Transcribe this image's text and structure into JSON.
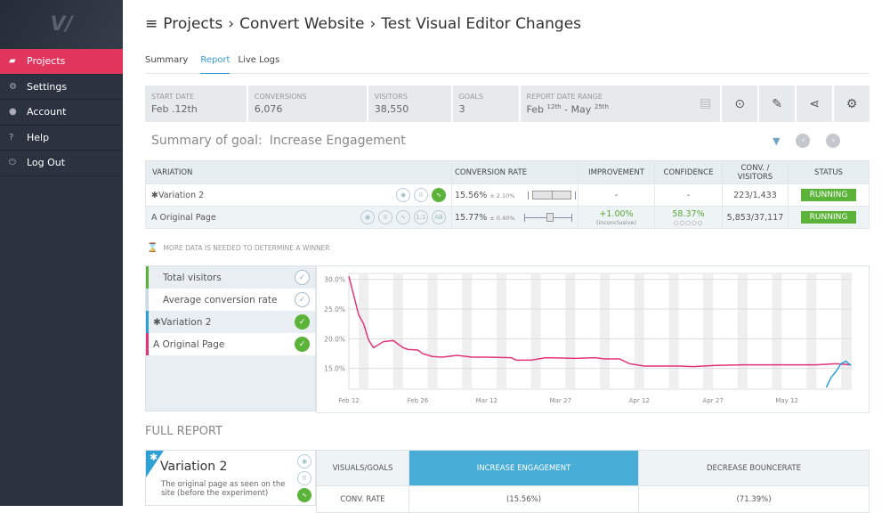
{
  "sidebar": {
    "logo": "V/",
    "items": [
      {
        "label": "Projects",
        "icon": "folder-icon",
        "active": true
      },
      {
        "label": "Settings",
        "icon": "gears-icon"
      },
      {
        "label": "Account",
        "icon": "user-icon"
      },
      {
        "label": "Help",
        "icon": "help-icon"
      },
      {
        "label": "Log Out",
        "icon": "power-icon"
      }
    ]
  },
  "breadcrumb": [
    "Projects",
    "Convert Website",
    "Test Visual Editor Changes"
  ],
  "tabs": [
    {
      "label": "Summary"
    },
    {
      "label": "Report",
      "active": true
    },
    {
      "label": "Live Logs"
    }
  ],
  "stats": [
    {
      "label": "START DATE",
      "value": "Feb .12th"
    },
    {
      "label": "CONVERSIONS",
      "value": "6,076"
    },
    {
      "label": "VISITORS",
      "value": "38,550"
    },
    {
      "label": "GOALS",
      "value": "3"
    }
  ],
  "date_range": {
    "label": "REPORT DATE RANGE",
    "from": "Feb",
    "from_sup": "12th",
    "sep": " - ",
    "to": "May",
    "to_sup": "25th"
  },
  "goal": {
    "prefix": "Summary of goal:",
    "name": "Increase Engagement"
  },
  "variation_table": {
    "headers": [
      "VARIATION",
      "CONVERSION RATE",
      "IMPROVEMENT",
      "CONFIDENCE",
      "CONV. / VISITORS",
      "STATUS"
    ],
    "rows": [
      {
        "marker": "✱",
        "name": "Variation 2",
        "rate": "15.56%",
        "margin": "± 2.10%",
        "improvement": "-",
        "improvement_note": "",
        "confidence": "-",
        "confidence_dots": "",
        "conv_visitors": "223/1,433",
        "status": "RUNNING"
      },
      {
        "marker": "A",
        "name": "Original Page",
        "rate": "15.77%",
        "margin": "± 0.40%",
        "improvement": "+1.00%",
        "improvement_note": "(inconclusive)",
        "confidence": "58.37%",
        "confidence_dots": "○○○○○",
        "conv_visitors": "5,853/37,117",
        "status": "RUNNING"
      }
    ]
  },
  "notice": "MORE DATA IS NEEDED TO DETERMINE A WINNER",
  "legend": [
    {
      "label": "Total visitors",
      "checked": false,
      "color": "#5cb33a"
    },
    {
      "label": "Average conversion rate",
      "checked": false,
      "color": "#c9dbe3"
    },
    {
      "label": "✱Variation 2",
      "checked": true,
      "color": "#2ea1d4"
    },
    {
      "label": "A Original Page",
      "checked": true,
      "color": "#e0357a"
    }
  ],
  "chart_data": {
    "type": "line",
    "ylim": [
      11.5,
      31
    ],
    "yticks": [
      "15.0%",
      "20.0%",
      "25.0%",
      "30.0%"
    ],
    "ytick_values": [
      15,
      20,
      25,
      30
    ],
    "xticks": [
      "Feb 12",
      "Feb 26",
      "Mar 12",
      "Mar 27",
      "Apr 12",
      "Apr 27",
      "May 12"
    ],
    "xtick_dates": [
      "2015-02-12",
      "2015-02-26",
      "2015-03-12",
      "2015-03-27",
      "2015-04-12",
      "2015-04-27",
      "2015-05-12"
    ],
    "xlim": [
      "2015-02-12",
      "2015-05-25"
    ],
    "grid": true,
    "series": [
      {
        "name": "Original Page",
        "color": "#e0357a",
        "points": [
          [
            "2015-02-12",
            30.5
          ],
          [
            "2015-02-14",
            24
          ],
          [
            "2015-02-15",
            22.5
          ],
          [
            "2015-02-16",
            19.8
          ],
          [
            "2015-02-17",
            18.5
          ],
          [
            "2015-02-19",
            19.5
          ],
          [
            "2015-02-21",
            19.7
          ],
          [
            "2015-02-23",
            18.5
          ],
          [
            "2015-02-24",
            18.2
          ],
          [
            "2015-02-26",
            18.1
          ],
          [
            "2015-02-27",
            17.5
          ],
          [
            "2015-03-01",
            17
          ],
          [
            "2015-03-03",
            16.9
          ],
          [
            "2015-03-06",
            17.2
          ],
          [
            "2015-03-09",
            16.9
          ],
          [
            "2015-03-12",
            16.9
          ],
          [
            "2015-03-17",
            16.8
          ],
          [
            "2015-03-18",
            16.4
          ],
          [
            "2015-03-21",
            16.4
          ],
          [
            "2015-03-24",
            16.8
          ],
          [
            "2015-03-30",
            16.7
          ],
          [
            "2015-04-03",
            16.8
          ],
          [
            "2015-04-05",
            16.6
          ],
          [
            "2015-04-08",
            16.6
          ],
          [
            "2015-04-10",
            15.8
          ],
          [
            "2015-04-13",
            15.4
          ],
          [
            "2015-04-20",
            15.4
          ],
          [
            "2015-04-23",
            15.3
          ],
          [
            "2015-04-27",
            15.5
          ],
          [
            "2015-05-03",
            15.6
          ],
          [
            "2015-05-12",
            15.6
          ],
          [
            "2015-05-18",
            15.6
          ],
          [
            "2015-05-22",
            15.8
          ],
          [
            "2015-05-25",
            15.6
          ]
        ]
      },
      {
        "name": "Variation 2",
        "color": "#2ea1d4",
        "points": [
          [
            "2015-05-20",
            11.8
          ],
          [
            "2015-05-21",
            13.5
          ],
          [
            "2015-05-22",
            14.5
          ],
          [
            "2015-05-23",
            15.8
          ],
          [
            "2015-05-24",
            16.2
          ],
          [
            "2015-05-25",
            15.5
          ]
        ]
      }
    ]
  },
  "full_report": {
    "title": "FULL REPORT",
    "variation": {
      "name": "Variation 2",
      "description": "The original page as seen on the site (before the experiment)"
    },
    "headers": [
      "VISUALS/GOALS",
      "INCREASE ENGAGEMENT",
      "DECREASE BOUNCERATE"
    ],
    "rows": [
      {
        "label": "CONV. RATE",
        "values": [
          "(15.56%)",
          "(71.39%)"
        ]
      }
    ]
  }
}
